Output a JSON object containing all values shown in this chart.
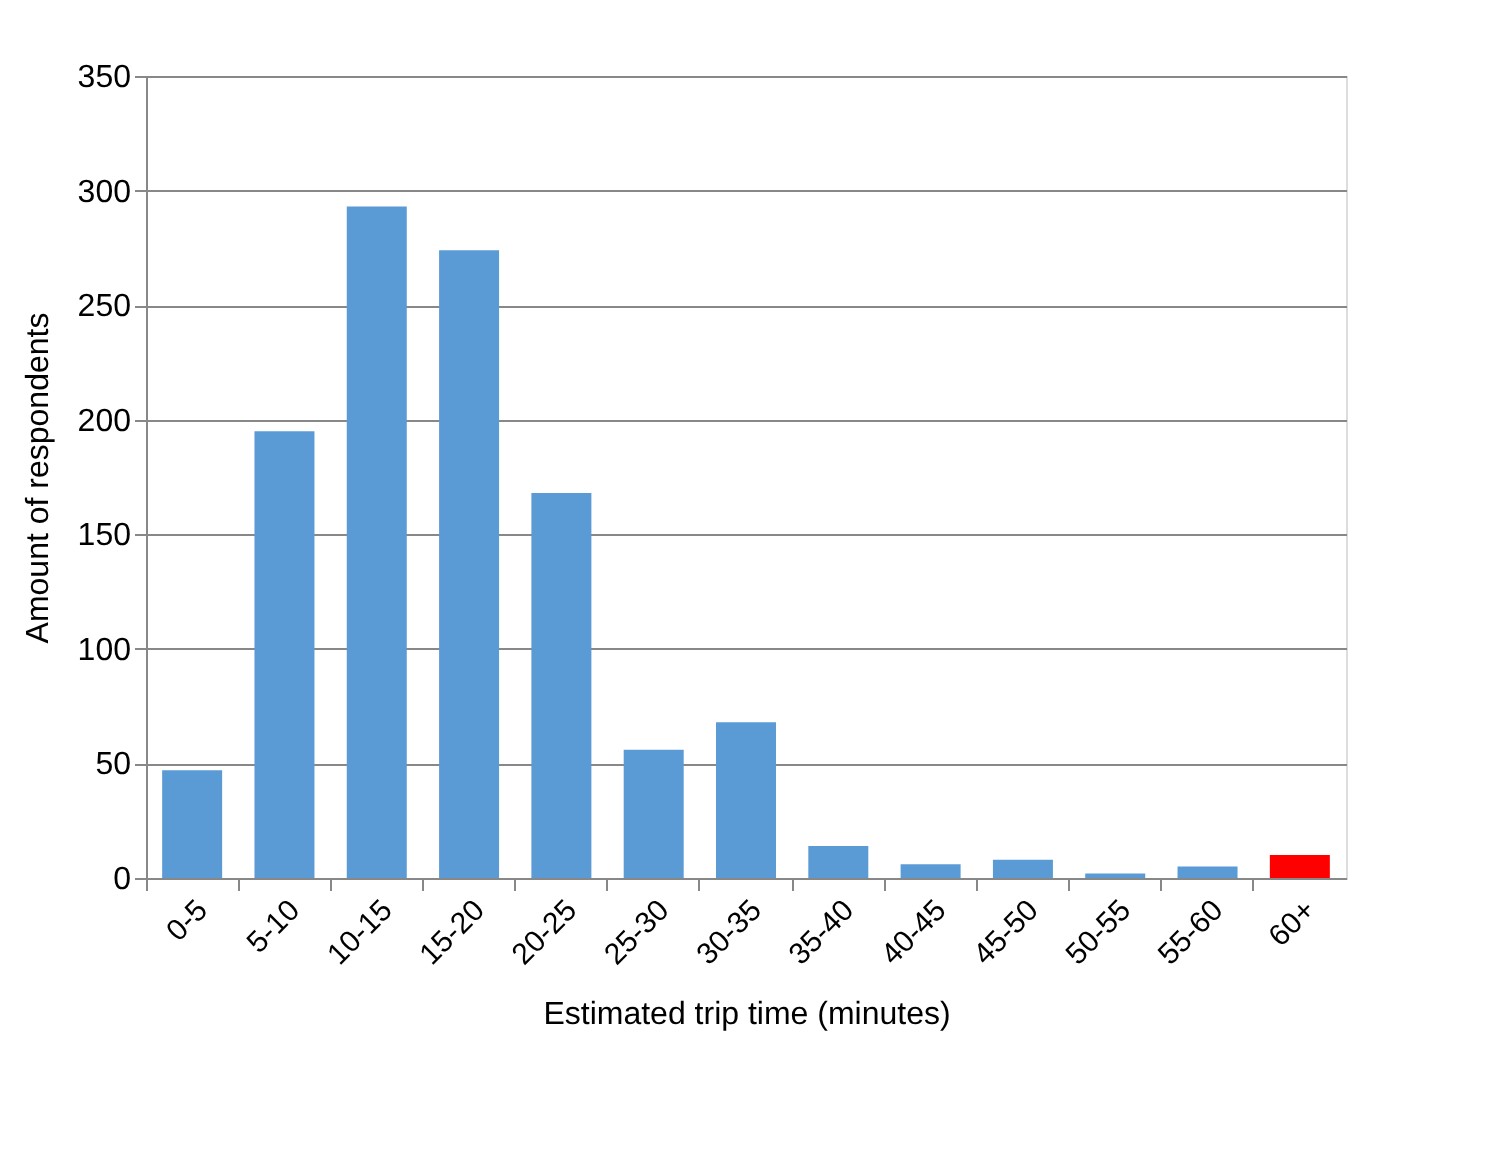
{
  "chart_data": {
    "type": "bar",
    "xlabel": "Estimated trip time (minutes)",
    "ylabel": "Amount of respondents",
    "categories": [
      "0-5",
      "5-10",
      "10-15",
      "15-20",
      "20-25",
      "25-30",
      "30-35",
      "35-40",
      "40-45",
      "45-50",
      "50-55",
      "55-60",
      "60+"
    ],
    "values": [
      47,
      195,
      293,
      274,
      168,
      56,
      68,
      14,
      6,
      8,
      2,
      5,
      10
    ],
    "colors": [
      "#5b9bd5",
      "#5b9bd5",
      "#5b9bd5",
      "#5b9bd5",
      "#5b9bd5",
      "#5b9bd5",
      "#5b9bd5",
      "#5b9bd5",
      "#5b9bd5",
      "#5b9bd5",
      "#5b9bd5",
      "#5b9bd5",
      "#ff0000"
    ],
    "ylim": [
      0,
      350
    ],
    "yticks": [
      0,
      50,
      100,
      150,
      200,
      250,
      300,
      350
    ],
    "grid": "y"
  }
}
